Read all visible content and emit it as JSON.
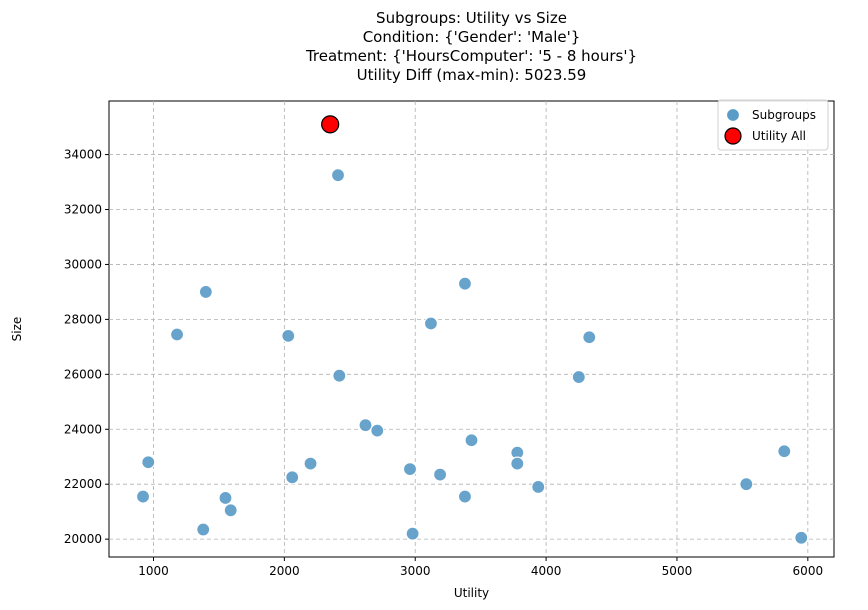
{
  "chart_data": {
    "type": "scatter",
    "title_lines": [
      "Subgroups: Utility vs Size",
      "Condition: {'Gender': 'Male'}",
      "Treatment: {'HoursComputer': '5 - 8 hours'}",
      "Utility Diff (max-min): 5023.59"
    ],
    "xlabel": "Utility",
    "ylabel": "Size",
    "xlim": [
      660,
      6200
    ],
    "ylim": [
      19350,
      35950
    ],
    "xticks": [
      1000,
      2000,
      3000,
      4000,
      5000,
      6000
    ],
    "yticks": [
      20000,
      22000,
      24000,
      26000,
      28000,
      30000,
      32000,
      34000
    ],
    "grid": true,
    "legend_position": "top-right",
    "series": [
      {
        "name": "Subgroups",
        "color": "#5b9bc8",
        "points": [
          [
            920,
            21550
          ],
          [
            960,
            22800
          ],
          [
            1180,
            27450
          ],
          [
            1380,
            20350
          ],
          [
            1400,
            29000
          ],
          [
            1550,
            21500
          ],
          [
            1590,
            21050
          ],
          [
            2030,
            27400
          ],
          [
            2060,
            22250
          ],
          [
            2200,
            22750
          ],
          [
            2410,
            33250
          ],
          [
            2420,
            25950
          ],
          [
            2620,
            24150
          ],
          [
            2710,
            23950
          ],
          [
            2960,
            22550
          ],
          [
            2980,
            20200
          ],
          [
            3120,
            27850
          ],
          [
            3190,
            22350
          ],
          [
            3380,
            29300
          ],
          [
            3380,
            21550
          ],
          [
            3430,
            23600
          ],
          [
            3780,
            23150
          ],
          [
            3780,
            22750
          ],
          [
            3940,
            21900
          ],
          [
            4250,
            25900
          ],
          [
            4330,
            27350
          ],
          [
            5530,
            22000
          ],
          [
            5820,
            23200
          ],
          [
            5950,
            20050
          ]
        ]
      },
      {
        "name": "Utility All",
        "color": "#ff0000",
        "points": [
          [
            2350,
            35100
          ]
        ]
      }
    ]
  }
}
